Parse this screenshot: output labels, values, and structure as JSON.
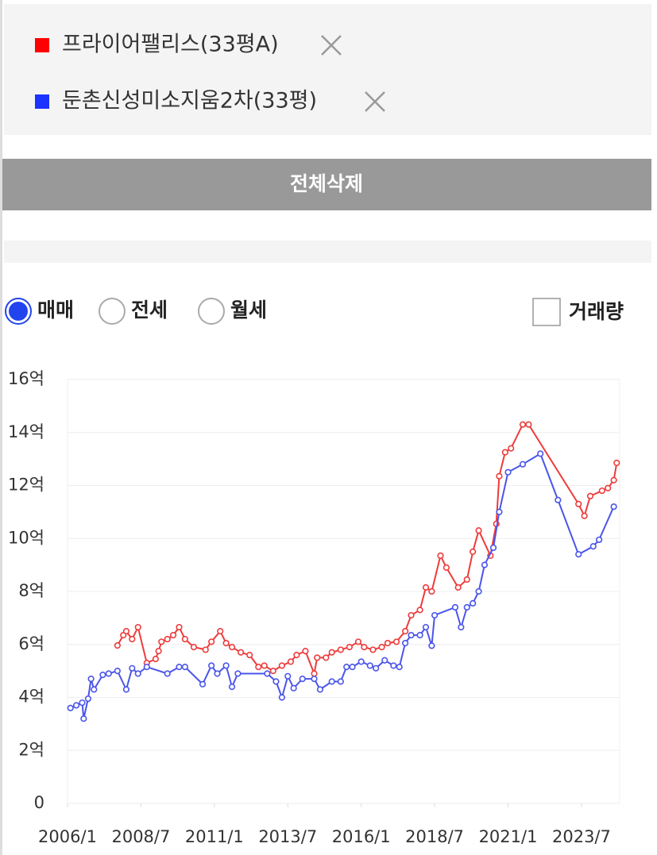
{
  "controls": {
    "delete_all": "전체삭제",
    "radios": [
      "매매",
      "전세",
      "월세"
    ],
    "selected": 0,
    "volume_checkbox": "거래량",
    "volume_checked": false
  },
  "chart_data": {
    "type": "line",
    "xlim": [
      2006,
      2024.8
    ],
    "xticks": [
      {
        "value": 2006,
        "label": "2006/1"
      },
      {
        "value": 2008.5,
        "label": "2008/7"
      },
      {
        "value": 2011,
        "label": "2011/1"
      },
      {
        "value": 2013.5,
        "label": "2013/7"
      },
      {
        "value": 2016,
        "label": "2016/1"
      },
      {
        "value": 2018.5,
        "label": "2018/7"
      },
      {
        "value": 2021,
        "label": "2021/1"
      },
      {
        "value": 2023.5,
        "label": "2023/7"
      }
    ],
    "ylim": [
      0,
      16
    ],
    "yticks": [
      0,
      {
        "value": 2,
        "label": "2억"
      },
      {
        "value": 4,
        "label": "4억"
      },
      {
        "value": 6,
        "label": "6억"
      },
      {
        "value": 8,
        "label": "8억"
      },
      {
        "value": 10,
        "label": "10억"
      },
      {
        "value": 12,
        "label": "12억"
      },
      {
        "value": 14,
        "label": "14억"
      },
      {
        "value": 16,
        "label": "16억"
      }
    ],
    "grid": true,
    "series": [
      {
        "name": "프라이어팰리스(33평A)",
        "color": "#ee3b3b",
        "x": [
          2007.7,
          2007.9,
          2008.0,
          2008.2,
          2008.4,
          2008.7,
          2009.0,
          2009.1,
          2009.2,
          2009.4,
          2009.6,
          2009.8,
          2010.0,
          2010.3,
          2010.7,
          2010.9,
          2011.2,
          2011.4,
          2011.6,
          2011.9,
          2012.2,
          2012.5,
          2012.7,
          2013.0,
          2013.3,
          2013.6,
          2013.8,
          2014.1,
          2014.4,
          2014.5,
          2014.8,
          2015.0,
          2015.3,
          2015.6,
          2015.9,
          2016.1,
          2016.4,
          2016.7,
          2016.9,
          2017.2,
          2017.5,
          2017.7,
          2018.0,
          2018.2,
          2018.4,
          2018.7,
          2018.9,
          2019.3,
          2019.6,
          2019.8,
          2020.0,
          2020.4,
          2020.6,
          2020.7,
          2020.9,
          2021.1,
          2021.5,
          2021.7,
          2023.4,
          2023.6,
          2023.8,
          2024.2,
          2024.4,
          2024.6,
          2024.7
        ],
        "values": [
          5.96,
          6.35,
          6.5,
          6.2,
          6.65,
          5.3,
          5.45,
          5.75,
          6.1,
          6.2,
          6.35,
          6.65,
          6.2,
          5.9,
          5.8,
          6.1,
          6.5,
          6.05,
          5.9,
          5.7,
          5.6,
          5.15,
          5.2,
          5.0,
          5.2,
          5.35,
          5.6,
          5.75,
          4.9,
          5.5,
          5.5,
          5.7,
          5.8,
          5.9,
          6.1,
          5.9,
          5.8,
          5.9,
          6.05,
          6.1,
          6.5,
          7.1,
          7.3,
          8.15,
          8.0,
          9.35,
          8.9,
          8.15,
          8.45,
          9.5,
          10.3,
          9.35,
          10.55,
          12.35,
          13.25,
          13.4,
          14.3,
          14.3,
          11.3,
          10.85,
          11.6,
          11.8,
          11.9,
          12.2,
          12.85
        ]
      },
      {
        "name": "둔촌신성미소지움2차(33평)",
        "color": "#4a55ea",
        "x": [
          2006.1,
          2006.3,
          2006.5,
          2006.55,
          2006.7,
          2006.8,
          2006.9,
          2007.2,
          2007.4,
          2007.7,
          2008.0,
          2008.2,
          2008.4,
          2008.7,
          2009.4,
          2009.8,
          2010.0,
          2010.6,
          2010.9,
          2011.1,
          2011.4,
          2011.6,
          2011.8,
          2012.8,
          2013.1,
          2013.3,
          2013.5,
          2013.7,
          2014.0,
          2014.4,
          2014.6,
          2015.0,
          2015.3,
          2015.5,
          2015.7,
          2016.0,
          2016.3,
          2016.5,
          2016.8,
          2017.1,
          2017.3,
          2017.5,
          2017.7,
          2018.0,
          2018.2,
          2018.4,
          2018.5,
          2019.2,
          2019.4,
          2019.6,
          2019.8,
          2020.0,
          2020.2,
          2020.5,
          2020.7,
          2021.0,
          2021.5,
          2022.1,
          2022.7,
          2023.4,
          2023.9,
          2024.1,
          2024.6
        ],
        "values": [
          3.6,
          3.7,
          3.8,
          3.2,
          3.95,
          4.7,
          4.3,
          4.85,
          4.9,
          5.0,
          4.3,
          5.1,
          4.9,
          5.15,
          4.9,
          5.15,
          5.15,
          4.5,
          5.2,
          4.9,
          5.2,
          4.4,
          4.9,
          4.9,
          4.6,
          4.0,
          4.8,
          4.35,
          4.7,
          4.7,
          4.3,
          4.6,
          4.6,
          5.15,
          5.15,
          5.35,
          5.2,
          5.1,
          5.4,
          5.2,
          5.15,
          6.05,
          6.35,
          6.35,
          6.65,
          5.95,
          7.1,
          7.4,
          6.65,
          7.4,
          7.55,
          8.0,
          9.0,
          9.65,
          11.0,
          12.5,
          12.8,
          13.2,
          11.45,
          9.4,
          9.7,
          9.95,
          11.2
        ]
      }
    ]
  }
}
